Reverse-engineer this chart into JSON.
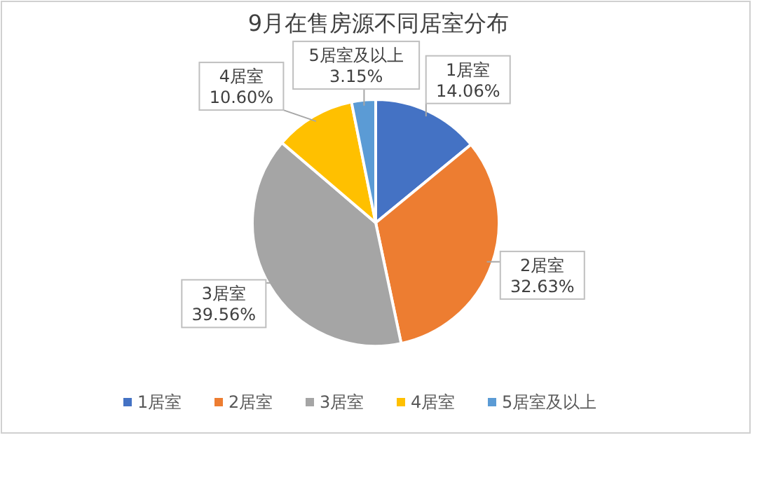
{
  "chart_data": {
    "type": "pie",
    "title": "9月在售房源不同居室分布",
    "categories": [
      "1居室",
      "2居室",
      "3居室",
      "4居室",
      "5居室及以上"
    ],
    "values": [
      14.06,
      32.63,
      39.56,
      10.6,
      3.15
    ],
    "value_labels": [
      "14.06%",
      "32.63%",
      "39.56%",
      "10.60%",
      "3.15%"
    ],
    "colors": [
      "#4472c4",
      "#ed7d31",
      "#a5a5a5",
      "#ffc000",
      "#5b9bd5"
    ],
    "legend": "bottom"
  }
}
